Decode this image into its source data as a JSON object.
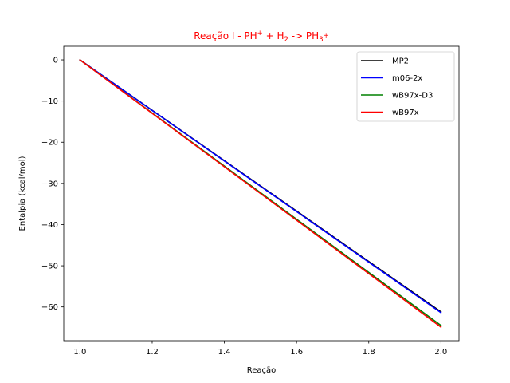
{
  "chart_data": {
    "type": "line",
    "title_parts": [
      {
        "text": "Reação I - PH",
        "shift": "base"
      },
      {
        "text": "+",
        "shift": "super"
      },
      {
        "text": " + H",
        "shift": "base"
      },
      {
        "text": "2",
        "shift": "sub"
      },
      {
        "text": " -> PH",
        "shift": "base"
      },
      {
        "text": "3",
        "shift": "sub"
      },
      {
        "text": "+",
        "shift": "super"
      }
    ],
    "title_color": "#ff0000",
    "xlabel": "Reação",
    "ylabel": "Entalpia (kcal/mol)",
    "xlim": [
      0.955,
      2.05
    ],
    "ylim": [
      -68.2,
      3.3
    ],
    "xticks": [
      1.0,
      1.2,
      1.4,
      1.6,
      1.8,
      2.0
    ],
    "xtick_labels": [
      "1.0",
      "1.2",
      "1.4",
      "1.6",
      "1.8",
      "2.0"
    ],
    "yticks": [
      0,
      -10,
      -20,
      -30,
      -40,
      -50,
      -60
    ],
    "ytick_labels": [
      "0",
      "−10",
      "−20",
      "−30",
      "−40",
      "−50",
      "−60"
    ],
    "grid": false,
    "legend_position": "top-right",
    "series": [
      {
        "name": "MP2",
        "color": "#000000",
        "x": [
          1.0,
          2.0
        ],
        "y": [
          0,
          -61.2
        ]
      },
      {
        "name": "m06-2x",
        "color": "#0000ff",
        "x": [
          1.0,
          2.0
        ],
        "y": [
          0,
          -61.4
        ]
      },
      {
        "name": "wB97x-D3",
        "color": "#008000",
        "x": [
          1.0,
          2.0
        ],
        "y": [
          0,
          -64.5
        ]
      },
      {
        "name": "wB97x",
        "color": "#ff0000",
        "x": [
          1.0,
          2.0
        ],
        "y": [
          0,
          -64.9
        ]
      }
    ]
  }
}
